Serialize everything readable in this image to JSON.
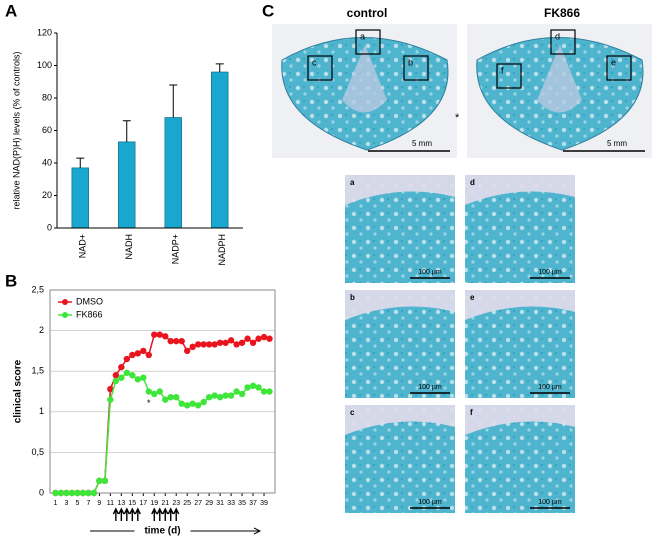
{
  "chart_data": [
    {
      "type": "bar",
      "panel": "A",
      "y_label": "relative NAD(P)H) levels (% of controls)",
      "categories": [
        "NAD+",
        "NADH",
        "NADP+",
        "NADPH"
      ],
      "values": [
        37,
        53,
        68,
        96
      ],
      "errors": [
        6,
        13,
        20,
        5
      ],
      "color": "#1aa7cf",
      "ylim": [
        0,
        120
      ],
      "yticks": [
        0,
        20,
        40,
        60,
        80,
        100,
        120
      ],
      "grid": false
    },
    {
      "type": "line",
      "panel": "B",
      "y_label": "clinical score",
      "x_label": "time (d)",
      "annotation": "*",
      "annotation_x": 18,
      "annotation_y": 1.1,
      "x": [
        1,
        2,
        3,
        4,
        5,
        6,
        7,
        8,
        9,
        10,
        11,
        12,
        13,
        14,
        15,
        16,
        17,
        18,
        19,
        20,
        21,
        22,
        23,
        24,
        25,
        26,
        27,
        28,
        29,
        30,
        31,
        32,
        33,
        34,
        35,
        36,
        37,
        38,
        39,
        40
      ],
      "series": [
        {
          "name": "DMSO",
          "color": "#e8141e",
          "values": [
            0,
            0,
            0,
            0,
            0,
            0,
            0,
            0,
            0.15,
            0.15,
            1.28,
            1.45,
            1.55,
            1.65,
            1.7,
            1.72,
            1.75,
            1.7,
            1.95,
            1.95,
            1.93,
            1.87,
            1.87,
            1.87,
            1.75,
            1.8,
            1.83,
            1.83,
            1.83,
            1.83,
            1.85,
            1.85,
            1.88,
            1.83,
            1.85,
            1.9,
            1.85,
            1.9,
            1.92,
            1.9
          ]
        },
        {
          "name": "FK866",
          "color": "#3ee63a",
          "values": [
            0,
            0,
            0,
            0,
            0,
            0,
            0,
            0,
            0.15,
            0.15,
            1.15,
            1.38,
            1.42,
            1.48,
            1.45,
            1.4,
            1.42,
            1.25,
            1.22,
            1.25,
            1.15,
            1.18,
            1.18,
            1.1,
            1.08,
            1.1,
            1.08,
            1.12,
            1.18,
            1.2,
            1.18,
            1.2,
            1.2,
            1.25,
            1.22,
            1.3,
            1.32,
            1.3,
            1.25,
            1.25
          ]
        }
      ],
      "xlim": [
        0,
        41
      ],
      "xticks": [
        1,
        3,
        5,
        7,
        9,
        11,
        13,
        15,
        17,
        19,
        21,
        23,
        25,
        27,
        29,
        31,
        33,
        35,
        37,
        39
      ],
      "ylim": [
        0,
        2.5
      ],
      "yticks": [
        0,
        {
          "value": 0.5,
          "label": "0,5"
        },
        1,
        {
          "value": 1.5,
          "label": "1,5"
        },
        2,
        {
          "value": 2.5,
          "label": "2,5"
        }
      ],
      "grid": true,
      "legend": "top-left",
      "treatment_days": [
        12,
        13,
        14,
        15,
        16,
        19,
        20,
        21,
        22,
        23
      ]
    }
  ],
  "histology": {
    "panel": "C",
    "columns": [
      "control",
      "FK866"
    ],
    "overview_scale": [
      "5 mm",
      "5 mm"
    ],
    "asterisk": "*",
    "boxes": [
      [
        "a",
        "c",
        "b"
      ],
      [
        "d",
        "f",
        "e"
      ]
    ],
    "micrographs": [
      {
        "label": "a",
        "scale": "100 µm"
      },
      {
        "label": "d",
        "scale": "100 µm"
      },
      {
        "label": "b",
        "scale": "100 µm"
      },
      {
        "label": "e",
        "scale": "100 µm"
      },
      {
        "label": "c",
        "scale": "100 µm"
      },
      {
        "label": "f",
        "scale": "100 µm"
      }
    ]
  }
}
